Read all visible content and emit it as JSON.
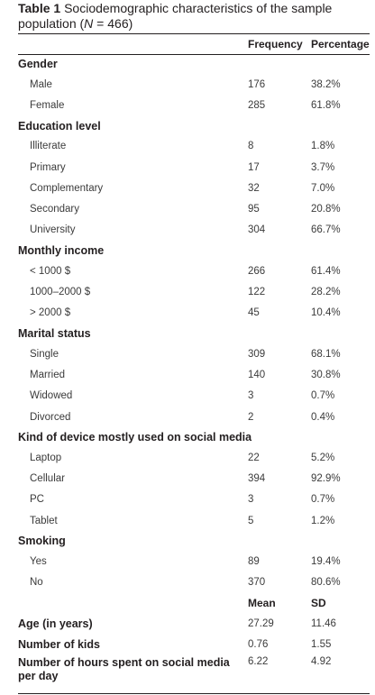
{
  "caption": {
    "number": "Table 1",
    "title": "Sociodemographic characteristics of the sample population (",
    "n_var": "N",
    "n_value": " = 466)"
  },
  "columns": {
    "frequency": "Frequency",
    "percentage": "Percentage"
  },
  "sections": [
    {
      "title": "Gender",
      "rows": [
        {
          "label": "Male",
          "frequency": "176",
          "percentage": "38.2%"
        },
        {
          "label": "Female",
          "frequency": "285",
          "percentage": "61.8%"
        }
      ]
    },
    {
      "title": "Education level",
      "rows": [
        {
          "label": "Illiterate",
          "frequency": "8",
          "percentage": "1.8%"
        },
        {
          "label": "Primary",
          "frequency": "17",
          "percentage": "3.7%"
        },
        {
          "label": "Complementary",
          "frequency": "32",
          "percentage": "7.0%"
        },
        {
          "label": "Secondary",
          "frequency": "95",
          "percentage": "20.8%"
        },
        {
          "label": "University",
          "frequency": "304",
          "percentage": "66.7%"
        }
      ]
    },
    {
      "title": "Monthly income",
      "rows": [
        {
          "label": "< 1000 $",
          "frequency": "266",
          "percentage": "61.4%"
        },
        {
          "label": "1000–2000 $",
          "frequency": "122",
          "percentage": "28.2%"
        },
        {
          "label": "> 2000 $",
          "frequency": "45",
          "percentage": "10.4%"
        }
      ]
    },
    {
      "title": "Marital status",
      "rows": [
        {
          "label": "Single",
          "frequency": "309",
          "percentage": "68.1%"
        },
        {
          "label": "Married",
          "frequency": "140",
          "percentage": "30.8%"
        },
        {
          "label": "Widowed",
          "frequency": "3",
          "percentage": "0.7%"
        },
        {
          "label": "Divorced",
          "frequency": "2",
          "percentage": "0.4%"
        }
      ]
    },
    {
      "title": "Kind of device mostly used on social media",
      "rows": [
        {
          "label": "Laptop",
          "frequency": "22",
          "percentage": "5.2%"
        },
        {
          "label": "Cellular",
          "frequency": "394",
          "percentage": "92.9%"
        },
        {
          "label": "PC",
          "frequency": "3",
          "percentage": "0.7%"
        },
        {
          "label": "Tablet",
          "frequency": "5",
          "percentage": "1.2%"
        }
      ]
    },
    {
      "title": "Smoking",
      "rows": [
        {
          "label": "Yes",
          "frequency": "89",
          "percentage": "19.4%"
        },
        {
          "label": "No",
          "frequency": "370",
          "percentage": "80.6%"
        }
      ]
    }
  ],
  "stats_header": {
    "mean": "Mean",
    "sd": "SD"
  },
  "stats": [
    {
      "label": "Age (in years)",
      "mean": "27.29",
      "sd": "11.46"
    },
    {
      "label": "Number of kids",
      "mean": "0.76",
      "sd": "1.55"
    },
    {
      "label": "Number of hours spent on social media per day",
      "mean": "6.22",
      "sd": "4.92"
    }
  ]
}
